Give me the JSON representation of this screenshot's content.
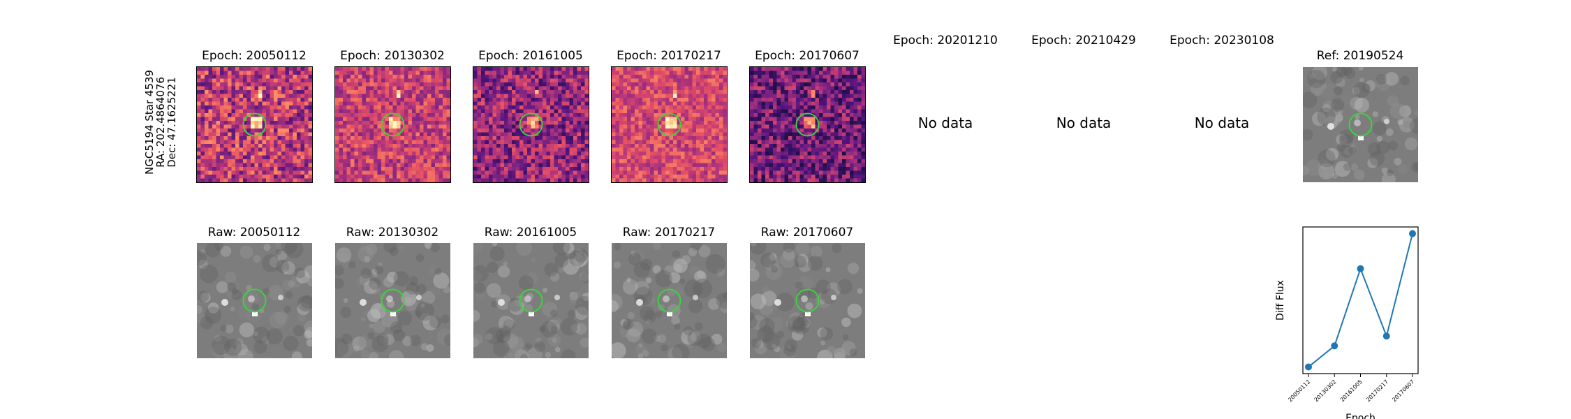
{
  "target": {
    "name": "NGC5194 Star 4539",
    "ra": "RA: 202.4864076",
    "dec": "Dec: 47.1625221"
  },
  "colors": {
    "circle": "#33dd33",
    "line": "#1f77b4",
    "diff_dark": "#2a0f55",
    "diff_bright": "#fcfdbf"
  },
  "diff_panels": [
    {
      "title": "Epoch: 20050112",
      "has_data": true
    },
    {
      "title": "Epoch: 20130302",
      "has_data": true
    },
    {
      "title": "Epoch: 20161005",
      "has_data": true
    },
    {
      "title": "Epoch: 20170217",
      "has_data": true
    },
    {
      "title": "Epoch: 20170607",
      "has_data": true
    },
    {
      "title": "Epoch: 20201210",
      "has_data": false,
      "message": "No data"
    },
    {
      "title": "Epoch: 20210429",
      "has_data": false,
      "message": "No data"
    },
    {
      "title": "Epoch: 20230108",
      "has_data": false,
      "message": "No data"
    }
  ],
  "ref_panel": {
    "title": "Ref: 20190524"
  },
  "raw_panels": [
    {
      "title": "Raw: 20050112"
    },
    {
      "title": "Raw: 20130302"
    },
    {
      "title": "Raw: 20161005"
    },
    {
      "title": "Raw: 20170217"
    },
    {
      "title": "Raw: 20170607"
    }
  ],
  "chart_data": {
    "type": "line",
    "categories": [
      "20050112",
      "20130302",
      "20161005",
      "20170217",
      "20170607"
    ],
    "values": [
      0.05,
      0.2,
      0.75,
      0.27,
      1.0
    ],
    "xlabel": "Epoch",
    "ylabel": "Diff Flux"
  }
}
